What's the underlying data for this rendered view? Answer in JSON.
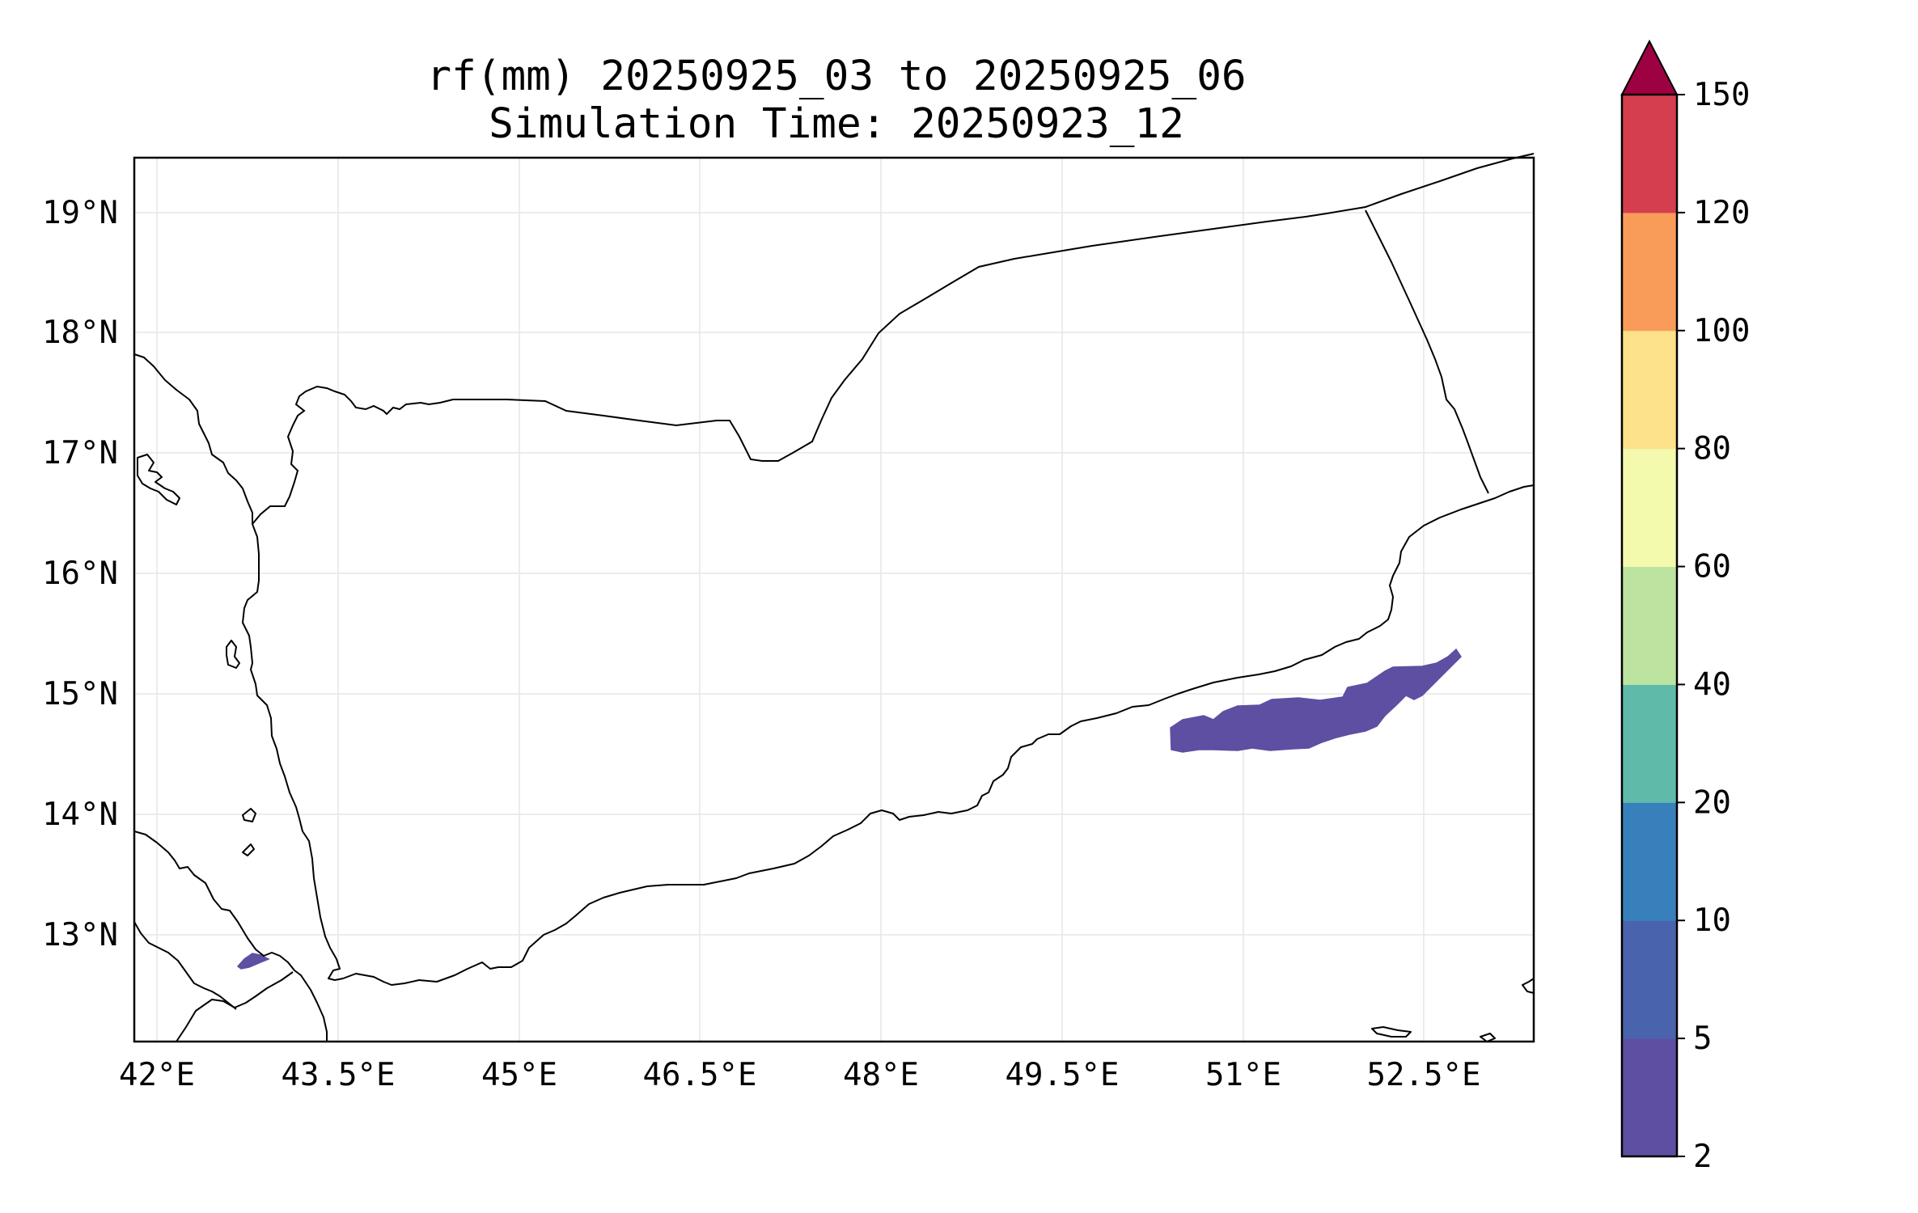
{
  "title": {
    "line1": "rf(mm) 20250925_03 to 20250925_06",
    "line2": "Simulation Time: 20250923_12"
  },
  "map": {
    "lon_range": [
      41.85,
      53.45
    ],
    "lat_range": [
      12.15,
      19.5
    ],
    "x_ticks": [
      "42°E",
      "43.5°E",
      "45°E",
      "46.5°E",
      "48°E",
      "49.5°E",
      "51°E",
      "52.5°E"
    ],
    "y_ticks": [
      "19°N",
      "18°N",
      "17°N",
      "16°N",
      "15°N",
      "14°N",
      "13°N"
    ],
    "gridlines": true,
    "rain_areas": [
      {
        "name": "Hadramawt coast band",
        "value_range": "2-5"
      },
      {
        "name": "Bab-el-Mandeb patch",
        "value_range": "2-5"
      }
    ]
  },
  "colorbar": {
    "levels": [
      "2",
      "5",
      "10",
      "20",
      "40",
      "60",
      "80",
      "100",
      "120",
      "150"
    ],
    "colors": [
      "#5e4fa2",
      "#4a63ad",
      "#3880bb",
      "#5fbaa9",
      "#bce4a0",
      "#f3f9ad",
      "#fde18b",
      "#f99c5a",
      "#d53e4f"
    ],
    "extend_color": "#9e0142",
    "extend": "max"
  }
}
